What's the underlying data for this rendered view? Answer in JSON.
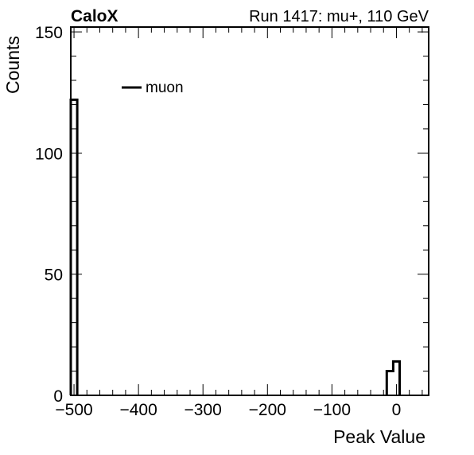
{
  "header": {
    "experiment": "CaloX",
    "run_info": "Run 1417: mu+, 110 GeV"
  },
  "chart_data": {
    "type": "histogram",
    "xlabel": "Peak Value",
    "ylabel": "Counts",
    "xlim": [
      -505,
      50
    ],
    "ylim": [
      0,
      152
    ],
    "x_ticks": [
      -500,
      -400,
      -300,
      -200,
      -100,
      0
    ],
    "x_tick_labels": [
      "−500",
      "−400",
      "−300",
      "−200",
      "−100",
      "0"
    ],
    "y_ticks": [
      0,
      50,
      100,
      150
    ],
    "y_tick_labels": [
      "0",
      "50",
      "100",
      "150"
    ],
    "series": [
      {
        "name": "muon",
        "color": "#000000",
        "bins": [
          {
            "lo": -505,
            "hi": -495,
            "count": 122
          },
          {
            "lo": -15,
            "hi": -5,
            "count": 10
          },
          {
            "lo": -5,
            "hi": 5,
            "count": 14
          }
        ]
      }
    ],
    "legend": {
      "placement": "top-left"
    },
    "grid": false
  }
}
